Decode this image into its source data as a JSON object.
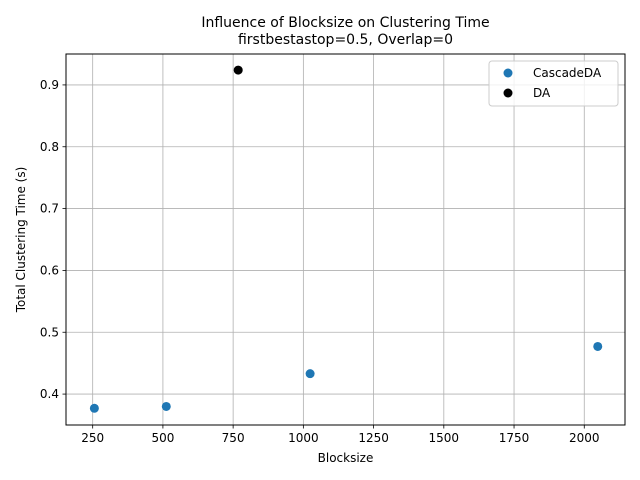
{
  "chart_data": {
    "type": "scatter",
    "title": "Influence of Blocksize on Clustering Time",
    "subtitle": "firstbestastop=0.5, Overlap=0",
    "xlabel": "Blocksize",
    "ylabel": "Total Clustering Time (s)",
    "xlim": [
      155,
      2145
    ],
    "ylim": [
      0.35,
      0.95
    ],
    "xticks": [
      250,
      500,
      750,
      1000,
      1250,
      1500,
      1750,
      2000
    ],
    "yticks": [
      0.4,
      0.5,
      0.6,
      0.7,
      0.8,
      0.9
    ],
    "xtick_labels": [
      "250",
      "500",
      "750",
      "1000",
      "1250",
      "1500",
      "1750",
      "2000"
    ],
    "ytick_labels": [
      "0.4",
      "0.5",
      "0.6",
      "0.7",
      "0.8",
      "0.9"
    ],
    "grid": true,
    "legend_position": "top-right",
    "series": [
      {
        "name": "CascadeDA",
        "color": "#1f77b4",
        "points": [
          {
            "x": 256,
            "y": 0.377
          },
          {
            "x": 512,
            "y": 0.38
          },
          {
            "x": 1024,
            "y": 0.433
          },
          {
            "x": 2048,
            "y": 0.477
          }
        ]
      },
      {
        "name": "DA",
        "color": "#000000",
        "points": [
          {
            "x": 768,
            "y": 0.924
          }
        ]
      }
    ]
  }
}
